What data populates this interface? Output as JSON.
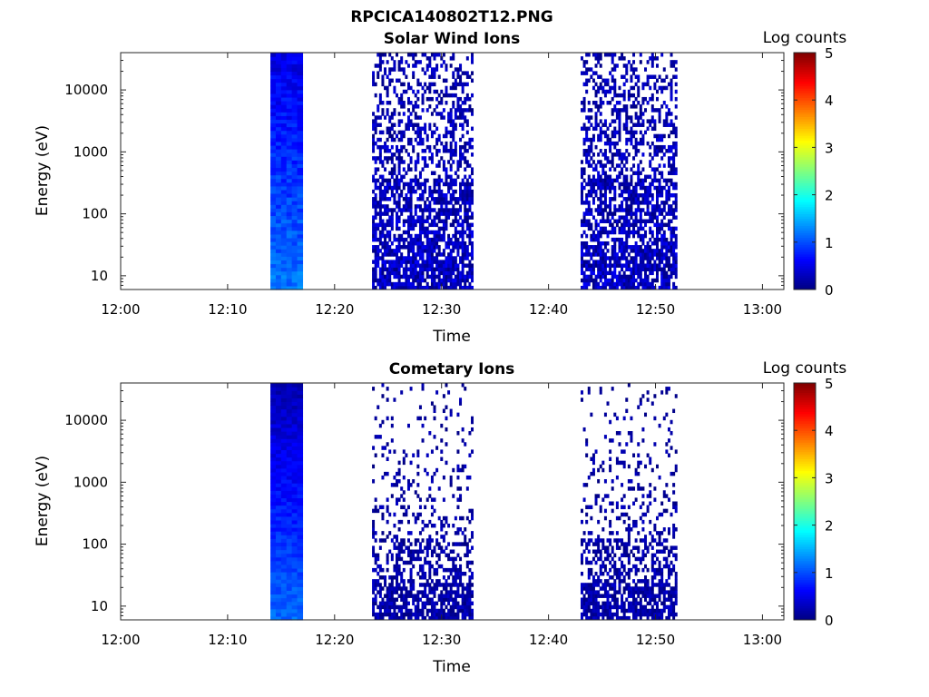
{
  "figure_title": "RPCICA140802T12.PNG",
  "chart_data": [
    {
      "type": "heatmap",
      "title": "Solar Wind Ions",
      "xlabel": "Time",
      "ylabel": "Energy (eV)",
      "x_ticks": [
        "12:00",
        "12:10",
        "12:20",
        "12:30",
        "12:40",
        "12:50",
        "13:00"
      ],
      "y_ticks": [
        "10",
        "100",
        "1000",
        "10000"
      ],
      "y_scale": "log",
      "ylim_eV": [
        6,
        40000
      ],
      "xlim_min": [
        0,
        62
      ],
      "colorbar_label": "Log counts",
      "colorbar_ticks": [
        "0",
        "1",
        "2",
        "3",
        "4",
        "5"
      ],
      "colorbar_range": [
        0,
        5
      ],
      "colormap": "jet",
      "grid": false,
      "data_blocks": [
        {
          "start": "12:14",
          "end": "12:17",
          "energy_eV": [
            6,
            40000
          ],
          "log_counts_low": [
            1.0,
            1.4
          ],
          "log_counts_high": [
            0.3,
            0.7
          ],
          "coverage": "full"
        },
        {
          "start": "12:23:30",
          "end": "12:33",
          "energy_eV": [
            6,
            40000
          ],
          "log_counts": [
            0.0,
            0.6
          ],
          "coverage": "patchy"
        },
        {
          "start": "12:43",
          "end": "12:52",
          "energy_eV": [
            6,
            40000
          ],
          "log_counts": [
            0.0,
            0.6
          ],
          "coverage": "patchy"
        }
      ]
    },
    {
      "type": "heatmap",
      "title": "Cometary Ions",
      "xlabel": "Time",
      "ylabel": "Energy (eV)",
      "x_ticks": [
        "12:00",
        "12:10",
        "12:20",
        "12:30",
        "12:40",
        "12:50",
        "13:00"
      ],
      "y_ticks": [
        "10",
        "100",
        "1000",
        "10000"
      ],
      "y_scale": "log",
      "ylim_eV": [
        6,
        40000
      ],
      "xlim_min": [
        0,
        62
      ],
      "colorbar_label": "Log counts",
      "colorbar_ticks": [
        "0",
        "1",
        "2",
        "3",
        "4",
        "5"
      ],
      "colorbar_range": [
        0,
        5
      ],
      "colormap": "jet",
      "grid": false,
      "data_blocks": [
        {
          "start": "12:14",
          "end": "12:17",
          "energy_eV": [
            6,
            40000
          ],
          "log_counts_low": [
            1.0,
            1.3
          ],
          "log_counts_high": [
            0.1,
            0.4
          ],
          "coverage": "full"
        },
        {
          "start": "12:23:30",
          "end": "12:33",
          "energy_eV": [
            6,
            40000
          ],
          "log_counts": [
            0.0,
            0.4
          ],
          "coverage": "sparse"
        },
        {
          "start": "12:43",
          "end": "12:52",
          "energy_eV": [
            6,
            40000
          ],
          "log_counts": [
            0.0,
            0.4
          ],
          "coverage": "sparse"
        }
      ]
    }
  ]
}
